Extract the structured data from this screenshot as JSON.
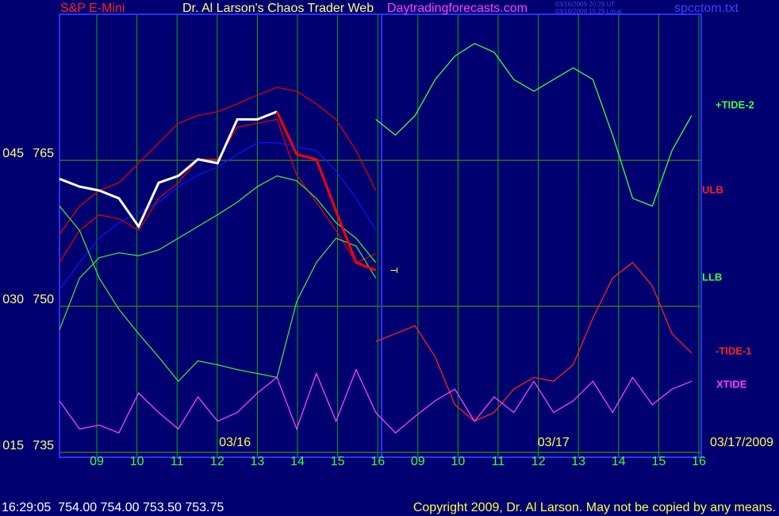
{
  "header": {
    "symbol": "S&P E-Mini",
    "title": "Dr. Al Larson's Chaos Trader Web",
    "site": "Daytradingforecasts.com",
    "timestamps": [
      "03/16/2009 20:29 UT",
      "03/16/2009 15:29 Local"
    ],
    "file": "spcctom.txt"
  },
  "chart_data": {
    "type": "line",
    "x": [
      -0.93,
      -0.43,
      0.06,
      0.55,
      1.04,
      1.54,
      2.03,
      2.52,
      3.01,
      3.5,
      4.0,
      4.49,
      4.98,
      5.47,
      5.96,
      6.46,
      6.95,
      7.44,
      7.93,
      8.43,
      8.92,
      9.41,
      9.9,
      10.39,
      10.89,
      11.38,
      11.87,
      12.36,
      12.85,
      13.35,
      13.84,
      14.33,
      14.82
    ],
    "xlim": [
      -0.93,
      15.06
    ],
    "xticks": [
      {
        "value": 0,
        "label": "09"
      },
      {
        "value": 1,
        "label": "10"
      },
      {
        "value": 2,
        "label": "11"
      },
      {
        "value": 3,
        "label": "12"
      },
      {
        "value": 4,
        "label": "13"
      },
      {
        "value": 5,
        "label": "14"
      },
      {
        "value": 6,
        "label": "15"
      },
      {
        "value": 7,
        "label": "16"
      },
      {
        "value": 8,
        "label": "09"
      },
      {
        "value": 9,
        "label": "10"
      },
      {
        "value": 10,
        "label": "11"
      },
      {
        "value": 11,
        "label": "12"
      },
      {
        "value": 12,
        "label": "13"
      },
      {
        "value": 13,
        "label": "14"
      },
      {
        "value": 14,
        "label": "15"
      },
      {
        "value": 15,
        "label": "16"
      }
    ],
    "ylim": [
      734.5,
      780
    ],
    "yticks": [
      735,
      750,
      765
    ],
    "y2lim": [
      14.5,
      60
    ],
    "y2ticks": [
      {
        "value": 15,
        "label": "015"
      },
      {
        "value": 30,
        "label": "030"
      },
      {
        "value": 45,
        "label": "045"
      }
    ],
    "grid": true,
    "date_labels": [
      {
        "value": 3.44,
        "label": "03/16"
      },
      {
        "value": 11.38,
        "label": "03/17"
      }
    ],
    "end_date": "03/17/2009",
    "annotations": [
      {
        "text": "T",
        "x": 7.38,
        "y": 753.7
      }
    ],
    "series": [
      {
        "color": "#1010ff",
        "values": [
          751.7,
          754.5,
          757.0,
          758.6,
          759.6,
          760.7,
          762.3,
          763.5,
          764.3,
          765.6,
          766.8,
          766.8,
          766.4,
          766.0,
          763.9,
          761.1,
          757.8,
          null,
          null,
          null,
          null,
          null,
          null,
          null,
          null,
          null,
          null,
          null,
          null,
          null,
          null,
          null,
          null
        ]
      },
      {
        "color": "#e00000",
        "values": [
          754.5,
          757.8,
          759.4,
          759.0,
          757.8,
          761.1,
          762.7,
          765.1,
          765.1,
          768.4,
          768.8,
          769.2,
          763.5,
          760.7,
          757.8,
          754.5,
          755.4,
          null,
          null,
          null,
          null,
          null,
          null,
          null,
          null,
          null,
          null,
          null,
          null,
          null,
          null,
          null,
          null
        ]
      },
      {
        "name": "ULB",
        "color": "#e00000",
        "values": [
          757.4,
          760.3,
          761.9,
          762.7,
          764.7,
          766.8,
          768.8,
          769.6,
          770.0,
          770.8,
          771.7,
          772.5,
          772.1,
          770.8,
          769.2,
          766.0,
          761.9,
          null,
          null,
          null,
          null,
          null,
          null,
          null,
          null,
          null,
          null,
          null,
          null,
          null,
          null,
          null,
          null
        ]
      },
      {
        "color": "#40e040",
        "values": [
          747.6,
          752.9,
          755.0,
          755.5,
          755.2,
          755.8,
          757.0,
          758.2,
          759.4,
          760.7,
          762.3,
          763.4,
          762.9,
          761.1,
          758.6,
          757.0,
          754.5,
          null,
          null,
          null,
          null,
          null,
          null,
          null,
          null,
          null,
          null,
          null,
          null,
          null,
          null,
          null,
          null
        ]
      },
      {
        "name": "LLB",
        "color": "#40e040",
        "values": [
          760.3,
          757.8,
          752.9,
          749.7,
          747.2,
          744.8,
          742.3,
          744.4,
          744.0,
          743.5,
          743.1,
          742.7,
          750.5,
          754.5,
          757.0,
          756.2,
          752.9,
          null,
          null,
          null,
          null,
          null,
          null,
          null,
          null,
          null,
          null,
          null,
          null,
          null,
          null,
          null,
          null
        ]
      },
      {
        "color": "#ffffff",
        "values": [
          763.1,
          762.3,
          761.9,
          761.1,
          758.2,
          762.7,
          763.4,
          765.1,
          764.7,
          769.2,
          769.2,
          770.0,
          null,
          null,
          null,
          null,
          null,
          null,
          null,
          null,
          null,
          null,
          null,
          null,
          null,
          null,
          null,
          null,
          null,
          null,
          null,
          null,
          null
        ]
      },
      {
        "color": "#ff0000",
        "values": [
          null,
          null,
          null,
          null,
          null,
          null,
          null,
          null,
          null,
          null,
          null,
          770.0,
          765.6,
          765.1,
          759.8,
          754.5,
          753.7,
          null,
          null,
          null,
          null,
          null,
          null,
          null,
          null,
          null,
          null,
          null,
          null,
          null,
          null,
          null,
          null
        ]
      },
      {
        "name": "+TIDE-2",
        "color": "#40ff40",
        "values": [
          null,
          null,
          null,
          null,
          null,
          null,
          null,
          null,
          null,
          null,
          null,
          null,
          null,
          null,
          null,
          null,
          769.2,
          767.6,
          769.6,
          773.3,
          775.7,
          777.0,
          776.1,
          773.3,
          772.1,
          773.3,
          774.5,
          773.3,
          767.6,
          761.1,
          760.3,
          766.0,
          769.6
        ]
      },
      {
        "name": "-TIDE-1",
        "color": "#ff2020",
        "values": [
          null,
          null,
          null,
          null,
          null,
          null,
          null,
          null,
          null,
          null,
          null,
          null,
          null,
          null,
          null,
          null,
          746.4,
          747.2,
          748.0,
          744.8,
          739.9,
          738.2,
          739.1,
          741.5,
          742.7,
          742.3,
          744.0,
          748.8,
          752.9,
          754.5,
          752.1,
          747.2,
          745.2
        ]
      },
      {
        "name": "XTIDE",
        "color": "#ff40ff",
        "values": [
          740.3,
          737.4,
          737.8,
          737.0,
          741.1,
          739.1,
          737.4,
          740.7,
          738.2,
          739.1,
          741.1,
          742.7,
          737.4,
          743.1,
          738.2,
          743.5,
          739.1,
          737.0,
          738.7,
          740.3,
          741.5,
          738.2,
          740.7,
          739.1,
          742.3,
          739.1,
          740.3,
          742.3,
          739.1,
          742.7,
          739.9,
          741.5,
          742.3
        ]
      }
    ]
  },
  "footer": {
    "quote": "16:29:05  754.00 754.00 753.50 753.75",
    "copyright": "Copyright 2009, Dr. Al Larson. May not be copied by any means."
  }
}
